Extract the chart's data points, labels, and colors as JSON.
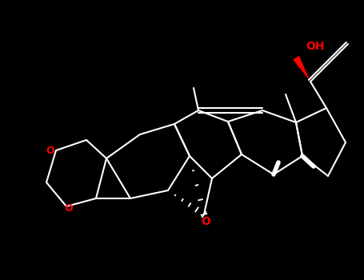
{
  "background": "#000000",
  "bond_color": "#ffffff",
  "red_color": "#ff0000",
  "bond_lw": 1.5,
  "bold_lw": 4.0,
  "figsize": [
    4.55,
    3.5
  ],
  "dpi": 100,
  "xlim": [
    0,
    9.1
  ],
  "ylim": [
    0,
    7.0
  ]
}
